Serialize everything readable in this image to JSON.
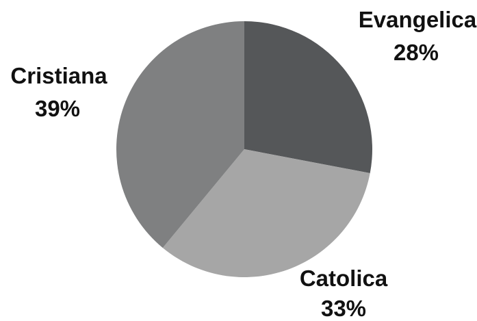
{
  "chart_data": {
    "type": "pie",
    "categories": [
      "Evangelica",
      "Catolica",
      "Cristiana"
    ],
    "values": [
      28,
      33,
      39
    ],
    "value_labels": [
      "28%",
      "33%",
      "39%"
    ],
    "colors": [
      "#555759",
      "#a6a6a6",
      "#7f8081"
    ],
    "title": "",
    "legend": "none",
    "start_angle": "12 o'clock",
    "direction": "clockwise"
  }
}
